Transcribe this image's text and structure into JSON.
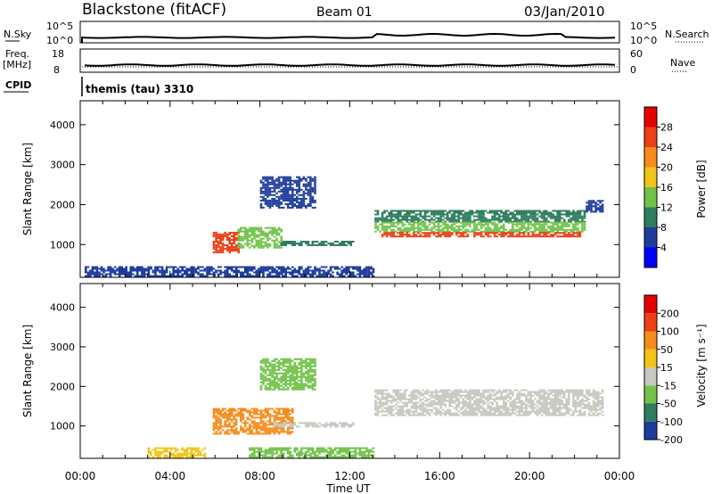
{
  "header": {
    "station": "Blackstone (fitACF)",
    "beam": "Beam 01",
    "date": "03/Jan/2010"
  },
  "strips": {
    "nsky_label": "N.Sky",
    "nsky_ticks": [
      "10^5",
      "10^0"
    ],
    "nsearch_label": "N.Search",
    "nsearch_ticks": [
      "10^5",
      "10^0"
    ],
    "freq_label": "Freq.",
    "freq_unit": "[MHz]",
    "freq_ticks": [
      "18",
      "8"
    ],
    "nave_label": "Nave",
    "nave_ticks": [
      "60",
      "0"
    ],
    "cpid_label": "CPID",
    "cpid_value": "themis (tau) 3310"
  },
  "colorbars": {
    "power": {
      "label": "Power [dB]",
      "ticks": [
        "28",
        "24",
        "20",
        "16",
        "12",
        "8",
        "4"
      ],
      "colors": [
        "#0000ff",
        "#1e3c9c",
        "#2e7d5e",
        "#72c24a",
        "#f2c417",
        "#f68c1c",
        "#ee3f16",
        "#e60000"
      ]
    },
    "velocity": {
      "label": "Velocity [m s⁻¹]",
      "ticks": [
        "200",
        "100",
        "50",
        "15",
        "-15",
        "-50",
        "-100",
        "-200"
      ],
      "colors": [
        "#1e3c9c",
        "#2e7d5e",
        "#72c24a",
        "#c8c8c0",
        "#f2c417",
        "#f68c1c",
        "#ee3f16",
        "#e60000"
      ]
    }
  },
  "chart_data": [
    {
      "type": "heatmap",
      "panel": "power",
      "ylabel": "Slant Range [km]",
      "yticks": [
        1000,
        2000,
        3000,
        4000
      ],
      "ylim": [
        180,
        4600
      ],
      "xlim": [
        0,
        24
      ],
      "regions": [
        {
          "t0": 5.9,
          "t1": 7.0,
          "r0": 780,
          "r1": 1300,
          "color": "#ee3f16"
        },
        {
          "t0": 7.0,
          "t1": 8.9,
          "r0": 900,
          "r1": 1400,
          "color": "#72c24a"
        },
        {
          "t0": 8.9,
          "t1": 12.1,
          "r0": 960,
          "r1": 1080,
          "color": "#2e7d5e"
        },
        {
          "t0": 13.1,
          "t1": 22.5,
          "r0": 1550,
          "r1": 1850,
          "color": "#2e7d5e"
        },
        {
          "t0": 13.1,
          "t1": 22.5,
          "r0": 1300,
          "r1": 1550,
          "color": "#72c24a"
        },
        {
          "t0": 13.4,
          "t1": 22.3,
          "r0": 1180,
          "r1": 1300,
          "color": "#ee3f16"
        },
        {
          "t0": 22.5,
          "t1": 23.3,
          "r0": 1800,
          "r1": 2100,
          "color": "#1e3c9c"
        },
        {
          "t0": 8.0,
          "t1": 10.4,
          "r0": 1900,
          "r1": 2700,
          "color": "#1e3c9c"
        },
        {
          "t0": 0.2,
          "t1": 13.0,
          "r0": 190,
          "r1": 440,
          "color": "#1e3c9c"
        }
      ]
    },
    {
      "type": "heatmap",
      "panel": "velocity",
      "xlabel": "Time UT",
      "ylabel": "Slant Range [km]",
      "yticks": [
        1000,
        2000,
        3000,
        4000
      ],
      "ylim": [
        180,
        4600
      ],
      "xlim": [
        0,
        24
      ],
      "xticks": [
        "00:00",
        "04:00",
        "08:00",
        "12:00",
        "16:00",
        "20:00",
        "00:00"
      ],
      "regions": [
        {
          "t0": 5.9,
          "t1": 9.4,
          "r0": 780,
          "r1": 1450,
          "color": "#f68c1c"
        },
        {
          "t0": 8.6,
          "t1": 12.1,
          "r0": 960,
          "r1": 1080,
          "color": "#c8c8c0"
        },
        {
          "t0": 13.1,
          "t1": 23.3,
          "r0": 1250,
          "r1": 1900,
          "color": "#c8c8c0"
        },
        {
          "t0": 8.0,
          "t1": 10.4,
          "r0": 1900,
          "r1": 2700,
          "color": "#72c24a"
        },
        {
          "t0": 3.0,
          "t1": 5.5,
          "r0": 190,
          "r1": 440,
          "color": "#f2c417"
        },
        {
          "t0": 7.5,
          "t1": 13.0,
          "r0": 190,
          "r1": 440,
          "color": "#72c24a"
        }
      ]
    }
  ]
}
